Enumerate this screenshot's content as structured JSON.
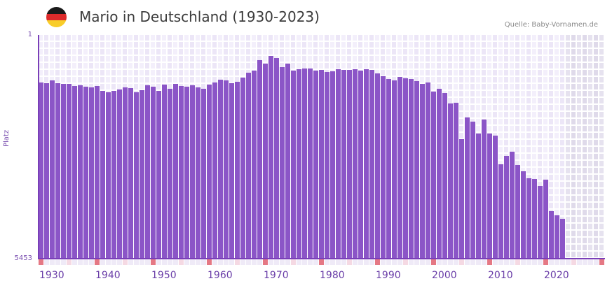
{
  "header": {
    "title": "Mario in Deutschland (1930-2023)",
    "source": "Quelle: Baby-Vornamen.de",
    "flag_icon": "germany-flag-icon",
    "flag_colors": [
      "#1a1a1a",
      "#dd2b2b",
      "#f8cd2a"
    ]
  },
  "colors": {
    "bar": "#8b55c7",
    "axis": "#7a3fb8",
    "grid_light": "#f3effb",
    "grid_dark": "#ece6f7",
    "future_light": "#e6e2ef",
    "future_dark": "#dfdaea",
    "decade_mark": "#e57884",
    "half_decade_mark": "#f5d9e3",
    "tick_mark": "#efeaf7"
  },
  "axis": {
    "y_top_label": "1",
    "y_bottom_label": "5453",
    "y_name": "Platz",
    "x_labels": [
      "1930",
      "1940",
      "1950",
      "1960",
      "1970",
      "1980",
      "1990",
      "2000",
      "2010",
      "2020"
    ]
  },
  "chart_data": {
    "type": "bar",
    "title": "Mario in Deutschland (1930-2023)",
    "xlabel": "",
    "ylabel": "Platz",
    "ylim": [
      5453,
      1
    ],
    "y_inverted": true,
    "x_range": [
      1930,
      2030
    ],
    "legend": [],
    "grid": true,
    "categories": [
      1930,
      1931,
      1932,
      1933,
      1934,
      1935,
      1936,
      1937,
      1938,
      1939,
      1940,
      1941,
      1942,
      1943,
      1944,
      1945,
      1946,
      1947,
      1948,
      1949,
      1950,
      1951,
      1952,
      1953,
      1954,
      1955,
      1956,
      1957,
      1958,
      1959,
      1960,
      1961,
      1962,
      1963,
      1964,
      1965,
      1966,
      1967,
      1968,
      1969,
      1970,
      1971,
      1972,
      1973,
      1974,
      1975,
      1976,
      1977,
      1978,
      1979,
      1980,
      1981,
      1982,
      1983,
      1984,
      1985,
      1986,
      1987,
      1988,
      1989,
      1990,
      1991,
      1992,
      1993,
      1994,
      1995,
      1996,
      1997,
      1998,
      1999,
      2000,
      2001,
      2002,
      2003,
      2004,
      2005,
      2006,
      2007,
      2008,
      2009,
      2010,
      2011,
      2012,
      2013,
      2014,
      2015,
      2016,
      2017,
      2018,
      2019,
      2020,
      2021,
      2022,
      2023
    ],
    "series": [
      {
        "name": "Platz",
        "values": [
          1160,
          1177,
          1109,
          1177,
          1194,
          1194,
          1245,
          1228,
          1262,
          1279,
          1245,
          1364,
          1398,
          1364,
          1330,
          1279,
          1296,
          1398,
          1347,
          1228,
          1262,
          1364,
          1211,
          1313,
          1194,
          1245,
          1262,
          1228,
          1279,
          1313,
          1211,
          1160,
          1092,
          1109,
          1177,
          1143,
          1041,
          922,
          871,
          615,
          700,
          513,
          564,
          786,
          700,
          871,
          837,
          820,
          820,
          871,
          854,
          905,
          888,
          837,
          854,
          854,
          837,
          871,
          837,
          854,
          939,
          1007,
          1075,
          1109,
          1024,
          1058,
          1075,
          1126,
          1194,
          1160,
          1381,
          1313,
          1415,
          1671,
          1654,
          2540,
          2012,
          2114,
          2403,
          2063,
          2403,
          2454,
          3153,
          2949,
          2846,
          3170,
          3324,
          3494,
          3511,
          3681,
          3528,
          4295,
          4397,
          4482
        ]
      }
    ]
  }
}
